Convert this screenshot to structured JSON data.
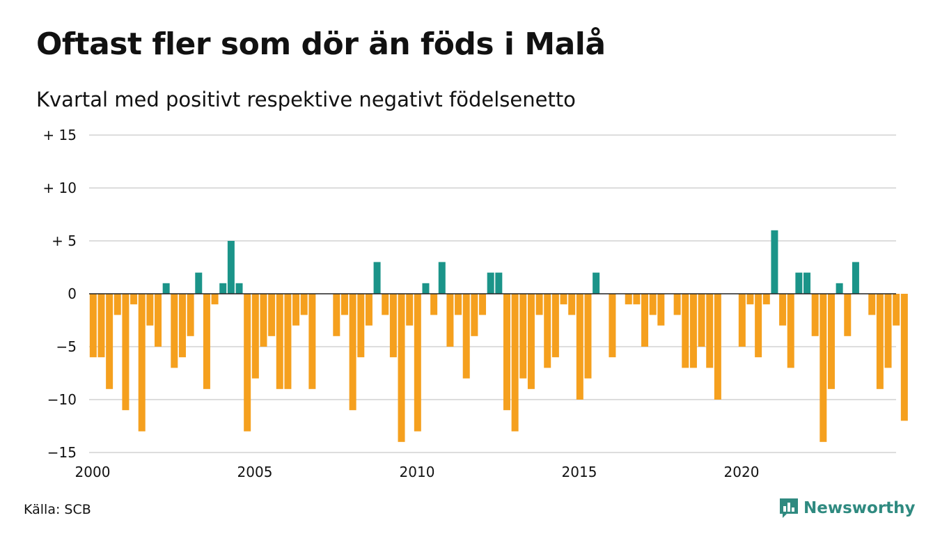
{
  "title": "Oftast fler som dör än föds i Malå",
  "subtitle": "Kvartal med positivt respektive negativt födelsenetto",
  "source": "Källa: SCB",
  "brand": "Newsworthy",
  "brand_icon": "bar-chart-speech-bubble-icon",
  "colors": {
    "positive": "#1b9489",
    "negative": "#f5a01e",
    "grid": "#dddddd",
    "zero_line": "#222222",
    "brand": "#2f8a80"
  },
  "chart_data": {
    "type": "bar",
    "title": "Oftast fler som dör än föds i Malå",
    "subtitle": "Kvartal med positivt respektive negativt födelsenetto",
    "xlabel": "",
    "ylabel": "",
    "ylim": [
      -15,
      15
    ],
    "grid": true,
    "yticks": [
      {
        "value": 15,
        "label": "+ 15"
      },
      {
        "value": 10,
        "label": "+ 10"
      },
      {
        "value": 5,
        "label": "+  5"
      },
      {
        "value": 0,
        "label": "0"
      },
      {
        "value": -5,
        "label": "−5"
      },
      {
        "value": -10,
        "label": "−10"
      },
      {
        "value": -15,
        "label": "−15"
      }
    ],
    "xticks": [
      "2000",
      "2005",
      "2010",
      "2015",
      "2020"
    ],
    "start_year": 2000,
    "values": [
      -6,
      -6,
      -9,
      -2,
      -11,
      -1,
      -13,
      -3,
      -5,
      1,
      -7,
      -6,
      -4,
      2,
      -9,
      -1,
      1,
      5,
      1,
      -13,
      -8,
      -5,
      -4,
      -9,
      -9,
      -3,
      -2,
      -9,
      0,
      0,
      -4,
      -2,
      -11,
      -6,
      -3,
      3,
      -2,
      -6,
      -14,
      -3,
      -13,
      1,
      -2,
      3,
      -5,
      -2,
      -8,
      -4,
      -2,
      2,
      2,
      -11,
      -13,
      -8,
      -9,
      -2,
      -7,
      -6,
      -1,
      -2,
      -10,
      -8,
      2,
      0,
      -6,
      0,
      -1,
      -1,
      -5,
      -2,
      -3,
      0,
      -2,
      -7,
      -7,
      -5,
      -7,
      -10,
      0,
      0,
      -5,
      -1,
      -6,
      -1,
      6,
      -3,
      -7,
      2,
      2,
      -4,
      -14,
      -9,
      1,
      -4,
      3,
      0,
      -2,
      -9,
      -7,
      -3,
      -12
    ]
  }
}
